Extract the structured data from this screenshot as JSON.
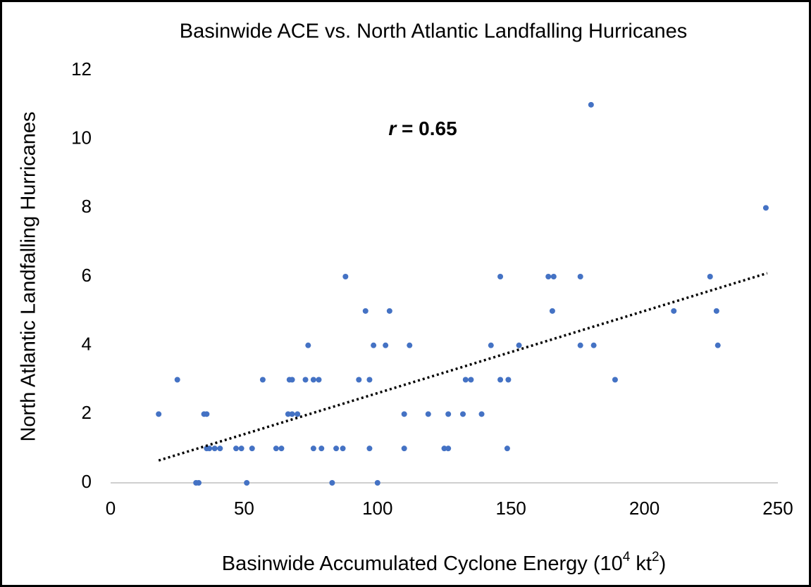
{
  "chart_data": {
    "type": "scatter",
    "title": "Basinwide ACE vs. North Atlantic Landfalling Hurricanes",
    "x_label_parts": [
      {
        "text": "Basinwide Accumulated Cyclone Energy (10",
        "sup": false
      },
      {
        "text": "4",
        "sup": true
      },
      {
        "text": " kt",
        "sup": false
      },
      {
        "text": "2",
        "sup": true
      },
      {
        "text": ")",
        "sup": false
      }
    ],
    "y_label": "North Atlantic Landfalling Hurricanes",
    "annotation": [
      "r",
      " = 0.65"
    ],
    "xlim": [
      0,
      250
    ],
    "xticks": [
      0,
      50,
      100,
      150,
      200,
      250
    ],
    "ylim": [
      0,
      12
    ],
    "yticks": [
      0,
      2,
      4,
      6,
      8,
      10,
      12
    ],
    "grid": false,
    "series": [
      {
        "color": "#4472c4",
        "x": [
          18,
          25,
          32,
          33,
          35,
          36,
          36,
          37,
          39,
          41,
          47,
          49,
          51,
          53,
          57,
          62,
          64,
          66.5,
          67,
          68,
          68,
          70,
          73,
          74,
          76,
          78,
          76,
          79,
          83,
          84.5,
          87,
          88,
          93,
          95.5,
          97,
          97,
          98.5,
          100,
          103,
          104.5,
          110,
          110,
          112,
          119,
          125,
          126.5,
          126.5,
          132,
          133,
          135,
          139,
          142.5,
          146,
          146,
          148.6,
          149,
          153,
          164,
          165.5,
          166,
          176,
          176,
          180,
          181,
          189,
          211,
          224.6,
          227,
          227.5,
          245.5
        ],
        "y": [
          2,
          3,
          0,
          0,
          2,
          2,
          1,
          1,
          1,
          1,
          1,
          1,
          0,
          1,
          3,
          1,
          1,
          2,
          3,
          3,
          2,
          2,
          3,
          4,
          3,
          3,
          1,
          1,
          0,
          1,
          1,
          6,
          3,
          5,
          3,
          1,
          4,
          0,
          4,
          5,
          1,
          2,
          4,
          2,
          1,
          1,
          2,
          2,
          3,
          3,
          2,
          4,
          6,
          3,
          1,
          3,
          4,
          6,
          5,
          6,
          6,
          4,
          11,
          4,
          3,
          5,
          6,
          5,
          4,
          8
        ]
      }
    ],
    "trendline": {
      "color": "#000000",
      "x": [
        18,
        246
      ],
      "y": [
        0.65,
        6.1
      ]
    }
  }
}
